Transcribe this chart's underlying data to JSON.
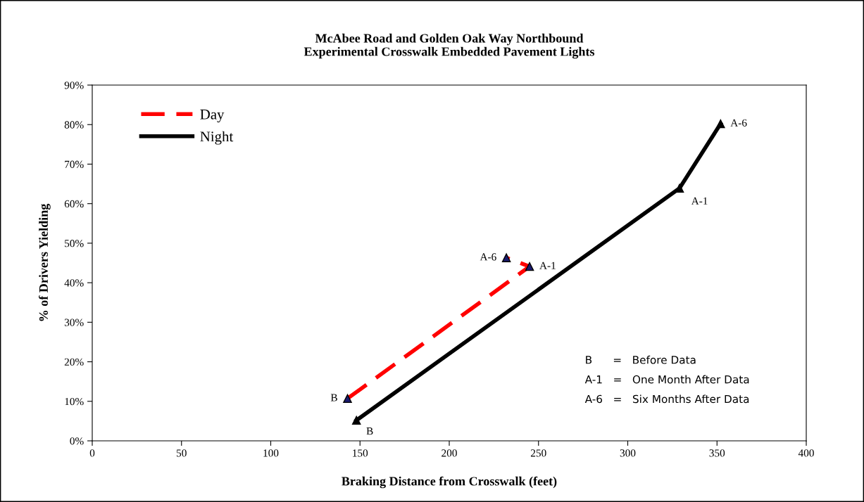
{
  "chart_data": {
    "type": "line",
    "title": "McAbee Road and Golden Oak Way Northbound\nExperimental Crosswalk Embedded Pavement Lights",
    "xlabel": "Braking Distance from Crosswalk (feet)",
    "ylabel": "% of Drivers Yielding",
    "series": [
      {
        "name": "Day",
        "color": "#ff0000",
        "line_style": "dashed",
        "marker": "triangle",
        "x": [
          143,
          245,
          232
        ],
        "values": [
          10.7,
          44.1,
          46.3
        ]
      },
      {
        "name": "Night",
        "color": "#000000",
        "line_style": "solid",
        "marker": "triangle",
        "x": [
          148,
          329,
          352
        ],
        "values": [
          5.2,
          63.9,
          80.2
        ]
      }
    ],
    "xlim": [
      0,
      400
    ],
    "xticks": [
      0,
      50,
      100,
      150,
      200,
      250,
      300,
      350,
      400
    ],
    "ylim": [
      0,
      90
    ],
    "yticks": [
      {
        "value": 0,
        "label": "0%"
      },
      {
        "value": 10,
        "label": "10%"
      },
      {
        "value": 20,
        "label": "20%"
      },
      {
        "value": 30,
        "label": "30%"
      },
      {
        "value": 40,
        "label": "40%"
      },
      {
        "value": 50,
        "label": "50%"
      },
      {
        "value": 60,
        "label": "60%"
      },
      {
        "value": 70,
        "label": "70%"
      },
      {
        "value": 80,
        "label": "80%"
      },
      {
        "value": 90,
        "label": "90%"
      }
    ],
    "grid": false,
    "legend": "top left",
    "annotations": [
      {
        "text": "B",
        "x": 143,
        "y": 10.7
      },
      {
        "text": "A-1",
        "x": 245,
        "y": 44.1
      },
      {
        "text": "A-6",
        "x": 232,
        "y": 46.3
      },
      {
        "text": "B",
        "x": 148,
        "y": 5.2
      },
      {
        "text": "A-1",
        "x": 329,
        "y": 63.9
      },
      {
        "text": "A-6",
        "x": 352,
        "y": 80.2
      },
      "B      =   Before Data",
      "A-1   =   One Month After Data",
      "A-6   =   Six Months After Data"
    ]
  }
}
